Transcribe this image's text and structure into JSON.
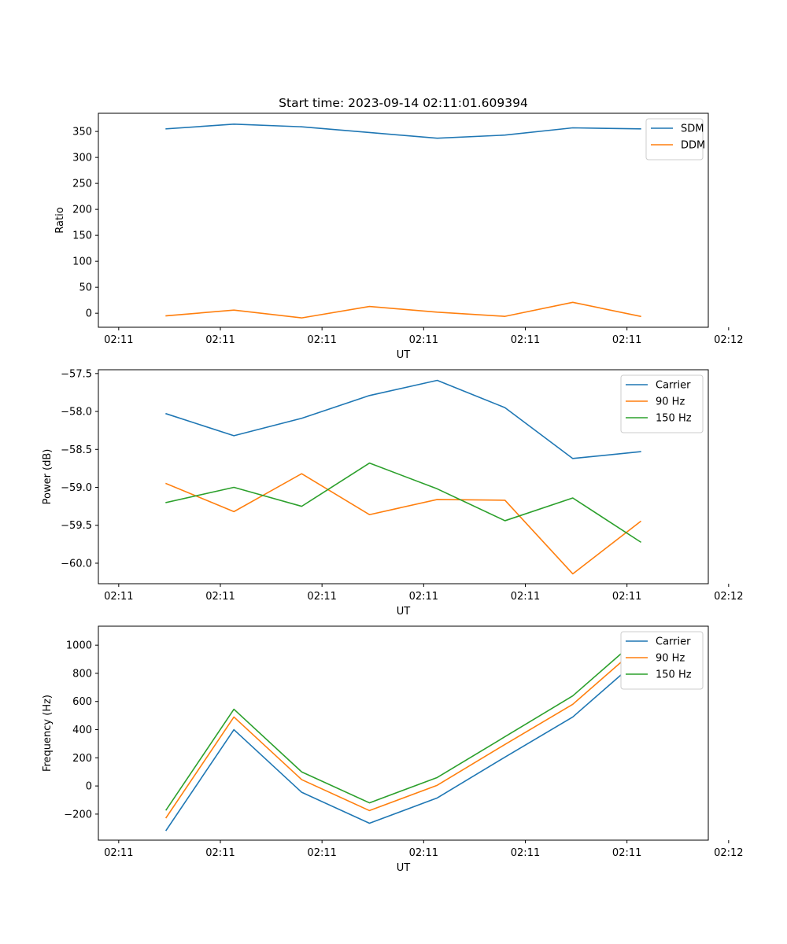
{
  "chart_data": [
    {
      "type": "line",
      "title": "Start time: 2023-09-14 02:11:01.609394",
      "xlabel": "UT",
      "ylabel": "Ratio",
      "xlim": [
        -0.3,
        8.7
      ],
      "ylim": [
        -27,
        385
      ],
      "x_ticks": [
        {
          "value": 0,
          "label": "02:11"
        },
        {
          "value": 1.5,
          "label": "02:11"
        },
        {
          "value": 3,
          "label": "02:11"
        },
        {
          "value": 4.5,
          "label": "02:11"
        },
        {
          "value": 6,
          "label": "02:11"
        },
        {
          "value": 7.5,
          "label": "02:11"
        },
        {
          "value": 9,
          "label": "02:12"
        }
      ],
      "y_ticks": [
        {
          "value": 350,
          "label": "350"
        },
        {
          "value": 300,
          "label": "300"
        },
        {
          "value": 250,
          "label": "250"
        },
        {
          "value": 200,
          "label": "200"
        },
        {
          "value": 150,
          "label": "150"
        },
        {
          "value": 100,
          "label": "100"
        },
        {
          "value": 50,
          "label": "50"
        },
        {
          "value": 0,
          "label": "0"
        }
      ],
      "x": [
        0.7,
        1.7,
        2.7,
        3.7,
        4.7,
        5.7,
        6.7,
        7.7
      ],
      "series": [
        {
          "name": "SDM",
          "color": "#1f77b4",
          "values": [
            355,
            364,
            359,
            348,
            337,
            343,
            357,
            355
          ]
        },
        {
          "name": "DDM",
          "color": "#ff7f0e",
          "values": [
            -5,
            6,
            -9,
            13,
            2,
            -6,
            21,
            -6
          ]
        }
      ],
      "legend": "top-right",
      "grid": false
    },
    {
      "type": "line",
      "title": "",
      "xlabel": "UT",
      "ylabel": "Power (dB)",
      "xlim": [
        -0.3,
        8.7
      ],
      "ylim": [
        -60.27,
        -57.45
      ],
      "x_ticks": [
        {
          "value": 0,
          "label": "02:11"
        },
        {
          "value": 1.5,
          "label": "02:11"
        },
        {
          "value": 3,
          "label": "02:11"
        },
        {
          "value": 4.5,
          "label": "02:11"
        },
        {
          "value": 6,
          "label": "02:11"
        },
        {
          "value": 7.5,
          "label": "02:11"
        },
        {
          "value": 9,
          "label": "02:12"
        }
      ],
      "y_ticks": [
        {
          "value": -57.5,
          "label": "−57.5"
        },
        {
          "value": -58.0,
          "label": "−58.0"
        },
        {
          "value": -58.5,
          "label": "−58.5"
        },
        {
          "value": -59.0,
          "label": "−59.0"
        },
        {
          "value": -59.5,
          "label": "−59.5"
        },
        {
          "value": -60.0,
          "label": "−60.0"
        }
      ],
      "x": [
        0.7,
        1.7,
        2.7,
        3.7,
        4.7,
        5.7,
        6.7,
        7.7
      ],
      "series": [
        {
          "name": "Carrier",
          "color": "#1f77b4",
          "values": [
            -58.03,
            -58.32,
            -58.09,
            -57.79,
            -57.59,
            -57.95,
            -58.62,
            -58.53
          ]
        },
        {
          "name": "90 Hz",
          "color": "#ff7f0e",
          "values": [
            -58.95,
            -59.32,
            -58.82,
            -59.36,
            -59.16,
            -59.17,
            -60.14,
            -59.45
          ]
        },
        {
          "name": "150 Hz",
          "color": "#2ca02c",
          "values": [
            -59.2,
            -59.0,
            -59.25,
            -58.68,
            -59.02,
            -59.44,
            -59.14,
            -59.72
          ]
        }
      ],
      "legend": "top-right",
      "grid": false
    },
    {
      "type": "line",
      "title": "",
      "xlabel": "UT",
      "ylabel": "Frequency (Hz)",
      "xlim": [
        -0.3,
        8.7
      ],
      "ylim": [
        -385,
        1135
      ],
      "x_ticks": [
        {
          "value": 0,
          "label": "02:11"
        },
        {
          "value": 1.5,
          "label": "02:11"
        },
        {
          "value": 3,
          "label": "02:11"
        },
        {
          "value": 4.5,
          "label": "02:11"
        },
        {
          "value": 6,
          "label": "02:11"
        },
        {
          "value": 7.5,
          "label": "02:11"
        },
        {
          "value": 9,
          "label": "02:12"
        }
      ],
      "y_ticks": [
        {
          "value": 1000,
          "label": "1000"
        },
        {
          "value": 800,
          "label": "800"
        },
        {
          "value": 600,
          "label": "600"
        },
        {
          "value": 400,
          "label": "400"
        },
        {
          "value": 200,
          "label": "200"
        },
        {
          "value": 0,
          "label": "0"
        },
        {
          "value": -200,
          "label": "−200"
        }
      ],
      "x": [
        0.7,
        1.7,
        2.7,
        3.7,
        4.7,
        5.7,
        6.7,
        7.7
      ],
      "series": [
        {
          "name": "Carrier",
          "color": "#1f77b4",
          "values": [
            -315,
            400,
            -45,
            -265,
            -85,
            205,
            490,
            910
          ]
        },
        {
          "name": "90 Hz",
          "color": "#ff7f0e",
          "values": [
            -225,
            490,
            45,
            -175,
            5,
            295,
            580,
            1000
          ]
        },
        {
          "name": "150 Hz",
          "color": "#2ca02c",
          "values": [
            -170,
            545,
            100,
            -120,
            60,
            350,
            640,
            1060
          ]
        }
      ],
      "legend": "top-right",
      "grid": false
    }
  ]
}
